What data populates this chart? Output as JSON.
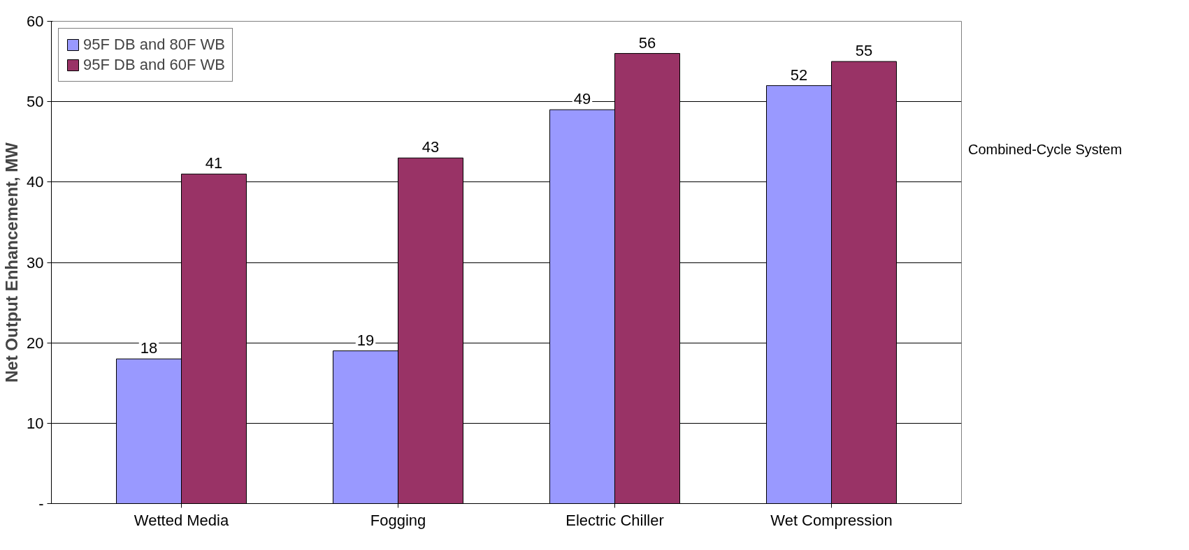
{
  "chart_data": {
    "type": "bar",
    "ylabel": "Net Output Enhancement, MW",
    "categories": [
      "Wetted Media",
      "Fogging",
      "Electric Chiller",
      "Wet Compression"
    ],
    "series": [
      {
        "name": "95F DB and 80F WB",
        "color": "#9999ff",
        "values": [
          18,
          19,
          49,
          52
        ]
      },
      {
        "name": "95F DB and 60F WB",
        "color": "#993366",
        "values": [
          41,
          43,
          56,
          55
        ]
      }
    ],
    "ylim": [
      0,
      60
    ],
    "yticks": [
      {
        "value": 0,
        "label": "-"
      },
      10,
      20,
      30,
      40,
      50,
      60
    ],
    "grid": "y",
    "legend": "top left",
    "data_labels": true,
    "annotations": [
      "Combined-Cycle System"
    ]
  }
}
